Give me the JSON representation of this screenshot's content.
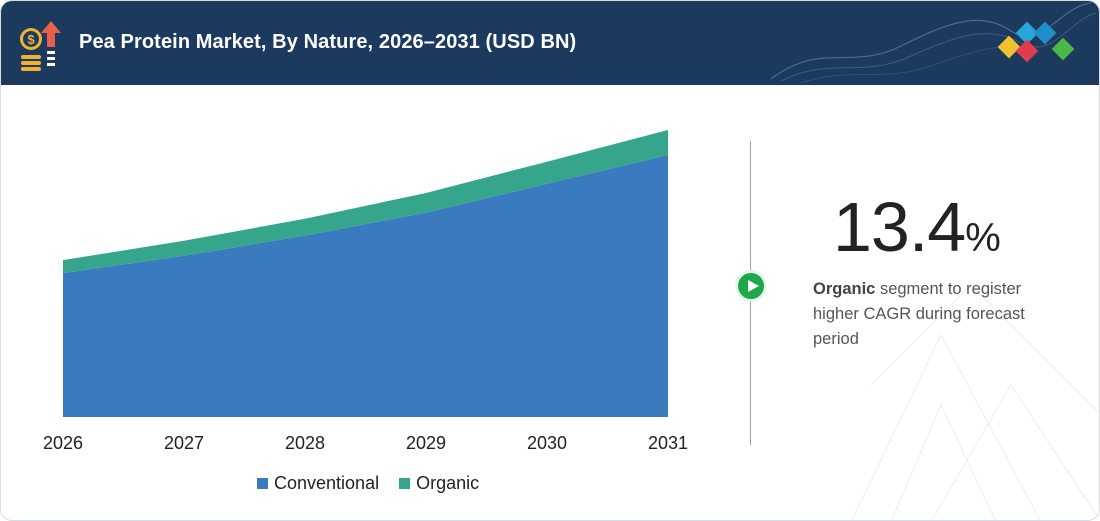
{
  "header": {
    "title": "Pea Protein Market, By Nature, 2026–2031 (USD BN)",
    "icon": "market-growth-icon",
    "background": "#1c3a5e"
  },
  "chart_data": {
    "type": "area",
    "stacked": true,
    "categories": [
      "2026",
      "2027",
      "2028",
      "2029",
      "2030",
      "2031"
    ],
    "series": [
      {
        "name": "Conventional",
        "color": "#3a7abf",
        "values": [
          5.0,
          5.6,
          6.3,
          7.1,
          8.1,
          9.1
        ]
      },
      {
        "name": "Organic",
        "color": "#35a68b",
        "values": [
          0.45,
          0.52,
          0.59,
          0.68,
          0.77,
          0.87
        ]
      }
    ],
    "legend": "bottom-center",
    "grid": false,
    "y_axis_visible": false
  },
  "legend": {
    "items": [
      {
        "label": "Conventional",
        "color": "#3a7abf"
      },
      {
        "label": "Organic",
        "color": "#35a68b"
      }
    ]
  },
  "highlight": {
    "value": "13.4",
    "unit": "%",
    "segment": "Organic",
    "text": " segment to register higher CAGR during forecast period",
    "accent": "#1fa84a"
  }
}
